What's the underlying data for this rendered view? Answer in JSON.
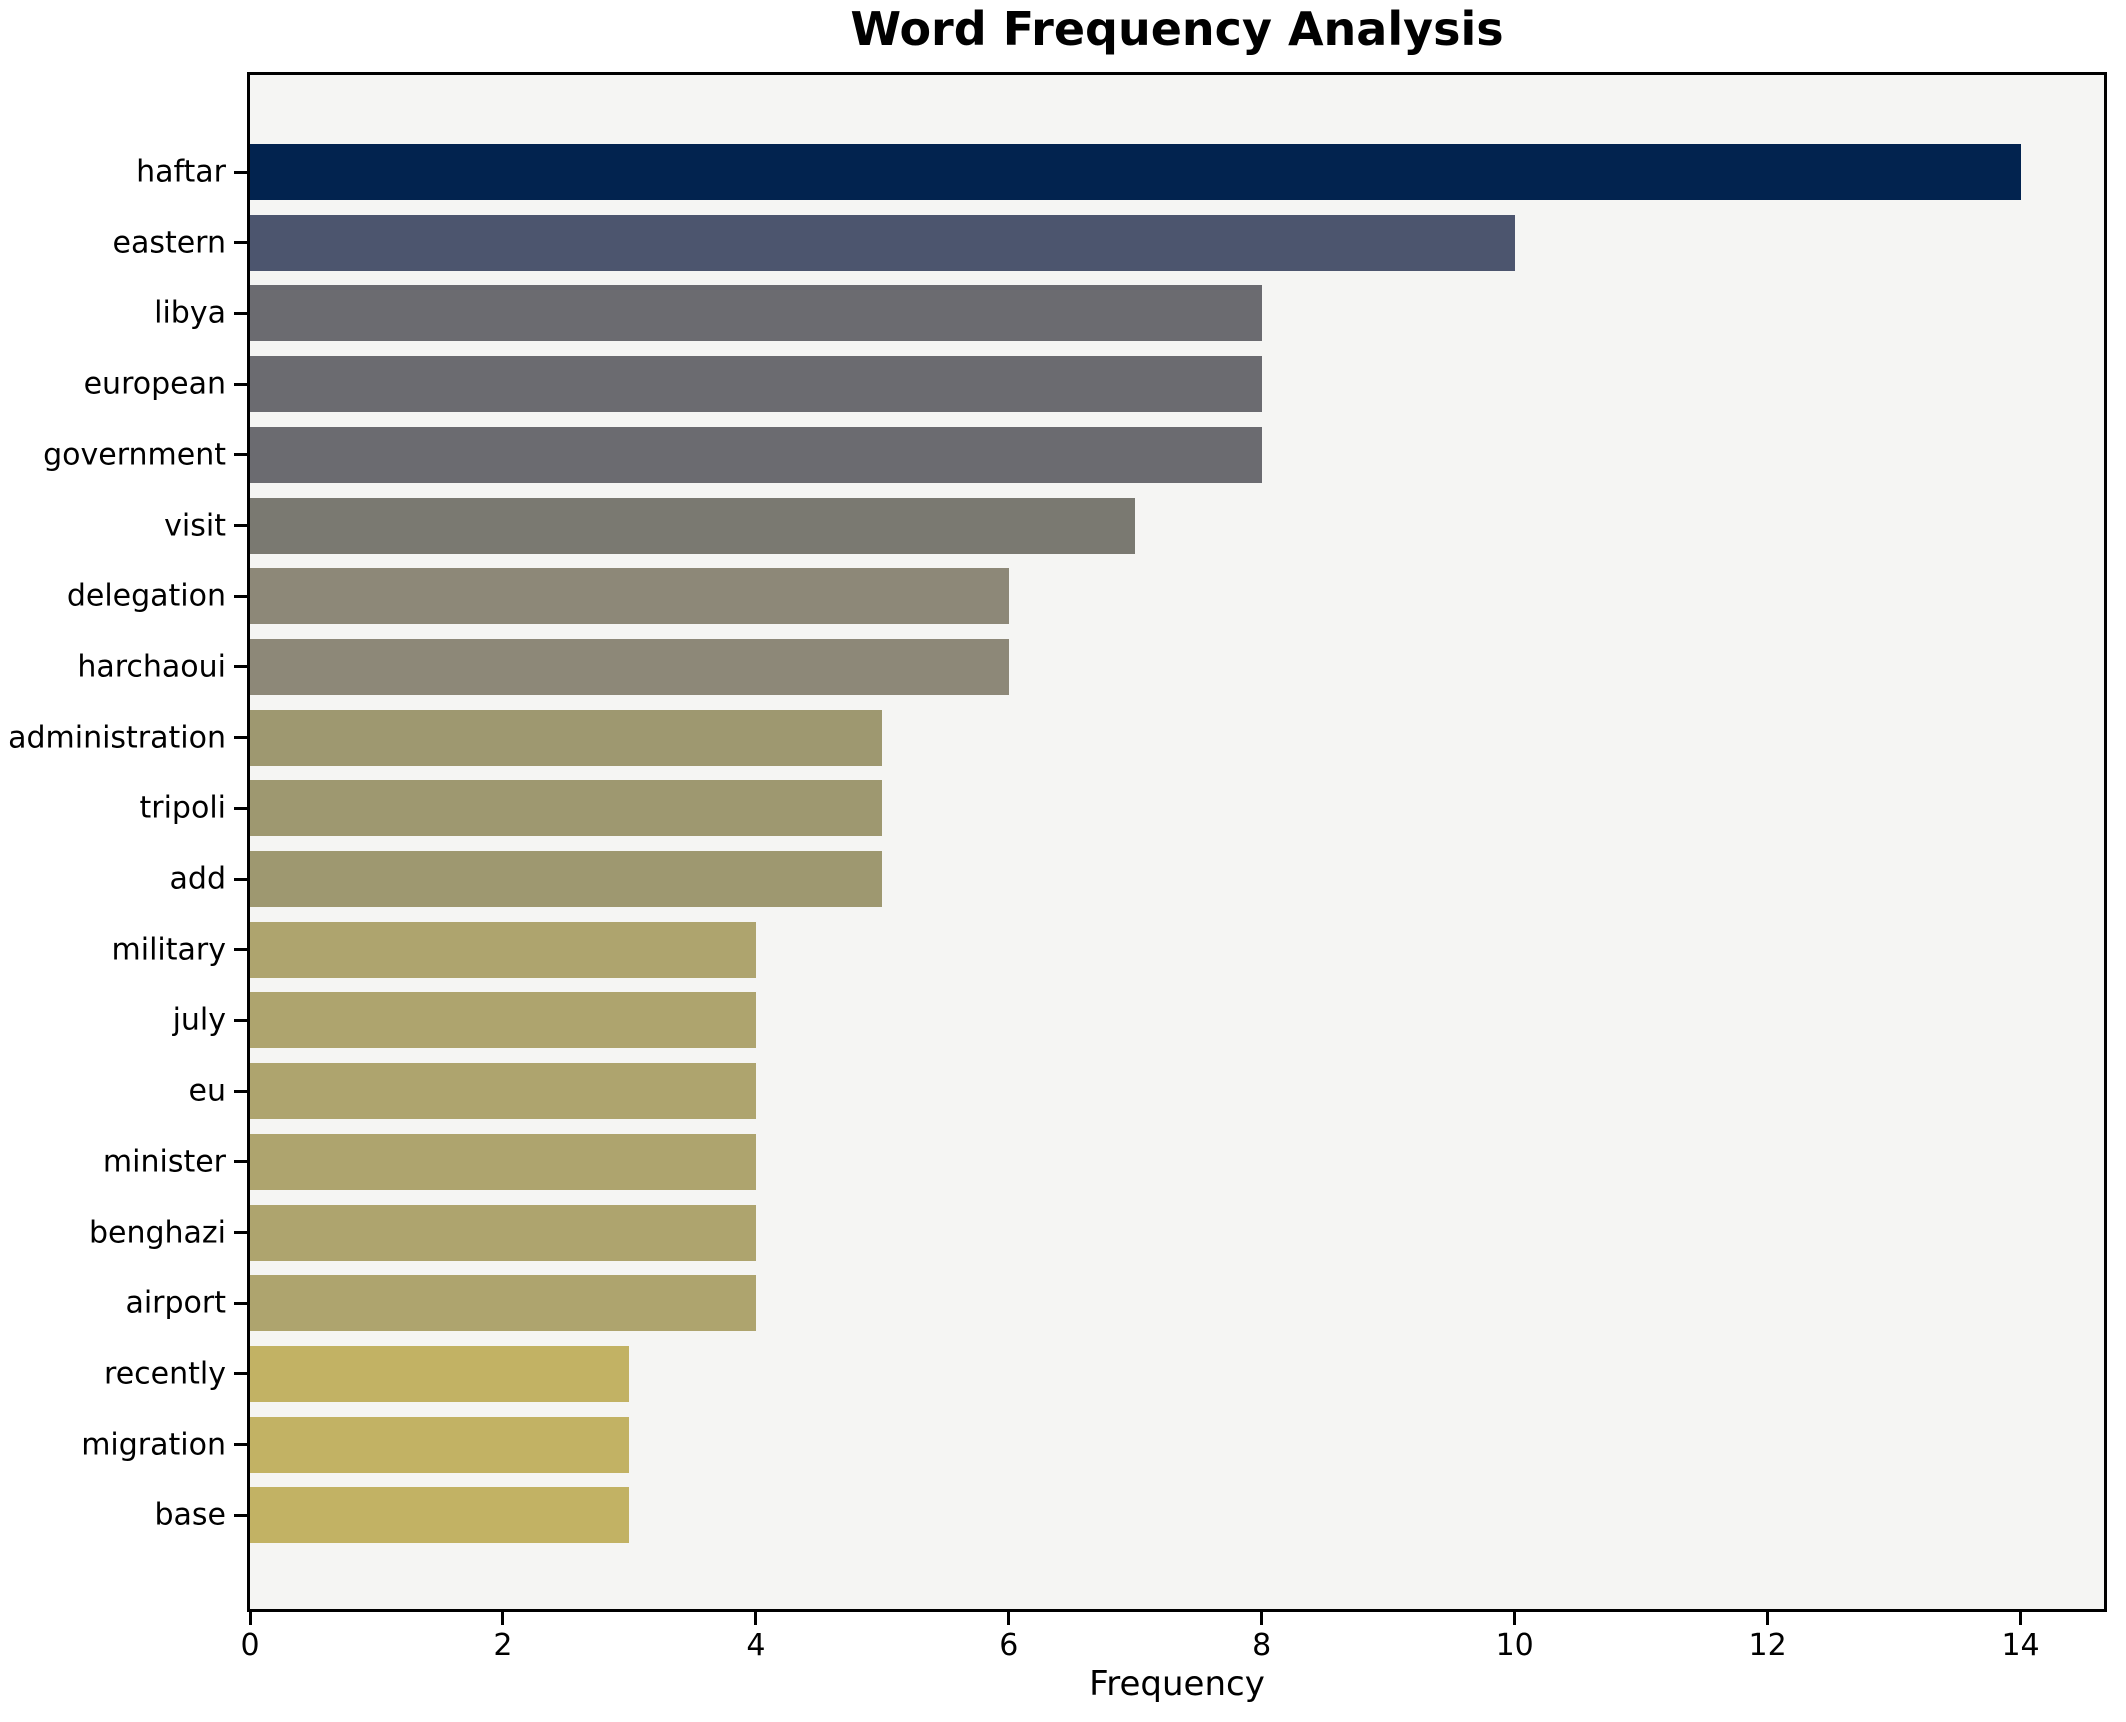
{
  "chart_data": {
    "type": "bar",
    "orientation": "horizontal",
    "title": "Word Frequency Analysis",
    "xlabel": "Frequency",
    "ylabel": "",
    "categories": [
      "haftar",
      "eastern",
      "libya",
      "european",
      "government",
      "visit",
      "delegation",
      "harchaoui",
      "administration",
      "tripoli",
      "add",
      "military",
      "july",
      "eu",
      "minister",
      "benghazi",
      "airport",
      "recently",
      "migration",
      "base"
    ],
    "values": [
      14,
      10,
      8,
      8,
      8,
      7,
      6,
      6,
      5,
      5,
      5,
      4,
      4,
      4,
      4,
      4,
      4,
      3,
      3,
      3
    ],
    "bar_colors": [
      "#02234f",
      "#4c556e",
      "#6b6b70",
      "#6b6b70",
      "#6b6b70",
      "#7a7971",
      "#8d8878",
      "#8d8878",
      "#9e9870",
      "#9e9870",
      "#9e9870",
      "#aea46e",
      "#aea46e",
      "#aea46e",
      "#aea46e",
      "#aea46e",
      "#aea46e",
      "#c2b264",
      "#c2b264",
      "#c2b264"
    ],
    "xticks": [
      0,
      2,
      4,
      6,
      8,
      10,
      12,
      14
    ],
    "xlim": [
      0,
      14.66
    ],
    "grid": false,
    "legend": null,
    "plot_bg_color": "#f5f5f3",
    "figure_bg_color": "#ffffff",
    "axis_color": "#000000"
  }
}
